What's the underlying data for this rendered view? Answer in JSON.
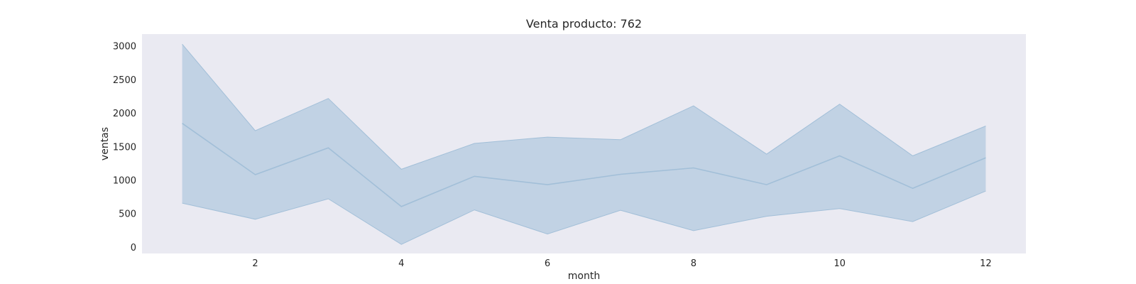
{
  "chart_data": {
    "type": "line",
    "title": "Venta producto: 762",
    "xlabel": "month",
    "ylabel": "ventas",
    "x": [
      1,
      2,
      3,
      4,
      5,
      6,
      7,
      8,
      9,
      10,
      11,
      12
    ],
    "series": [
      {
        "values": [
          1850,
          1085,
          1485,
          610,
          1060,
          935,
          1090,
          1185,
          935,
          1365,
          880,
          1335
        ],
        "ci_upper": [
          3030,
          1740,
          2220,
          1165,
          1550,
          1645,
          1605,
          2110,
          1390,
          2135,
          1365,
          1810
        ],
        "ci_lower": [
          660,
          420,
          725,
          45,
          560,
          200,
          555,
          250,
          465,
          580,
          385,
          840
        ]
      }
    ],
    "xticks": [
      2,
      4,
      6,
      8,
      10,
      12
    ],
    "yticks": [
      0,
      500,
      1000,
      1500,
      2000,
      2500,
      3000
    ],
    "xlim": [
      0.45,
      12.55
    ],
    "ylim": [
      -90,
      3180
    ],
    "grid": false,
    "colors": {
      "background": "#eaeaf2",
      "band": "#c1d2e4",
      "line": "#a2bfd8"
    }
  }
}
